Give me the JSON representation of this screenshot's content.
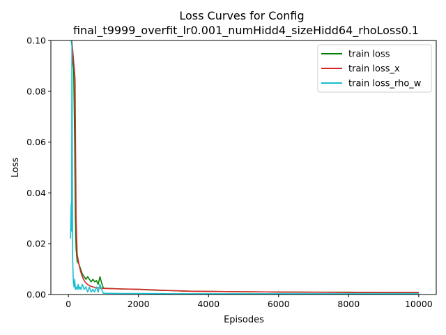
{
  "chart_data": {
    "type": "line",
    "title_line1": "Loss Curves for Config",
    "title_line2": "final_t9999_overfit_lr0.001_numHidd4_sizeHidd64_rhoLoss0.1",
    "xlabel": "Episodes",
    "ylabel": "Loss",
    "xlim": [
      -500,
      10500
    ],
    "ylim": [
      0.0,
      0.1
    ],
    "xticks": [
      0,
      2000,
      4000,
      6000,
      8000,
      10000
    ],
    "xtick_labels": [
      "0",
      "2000",
      "4000",
      "6000",
      "8000",
      "10000"
    ],
    "yticks": [
      0.0,
      0.02,
      0.04,
      0.06,
      0.08,
      0.1
    ],
    "ytick_labels": [
      "0.00",
      "0.02",
      "0.04",
      "0.06",
      "0.08",
      "0.10"
    ],
    "grid": false,
    "legend_position": "top-right",
    "series": [
      {
        "name": "train loss",
        "color": "#008000",
        "x": [
          80,
          100,
          120,
          150,
          180,
          200,
          220,
          250,
          300,
          350,
          400,
          450,
          500,
          550,
          600,
          650,
          700,
          750,
          800,
          850,
          900,
          950,
          1000,
          1500,
          2000,
          2500,
          3000,
          3500,
          4000,
          5000,
          6000,
          7000,
          8000,
          9000,
          10000
        ],
        "y": [
          0.1,
          0.098,
          0.092,
          0.089,
          0.06,
          0.03,
          0.018,
          0.013,
          0.012,
          0.01,
          0.008,
          0.007,
          0.006,
          0.007,
          0.006,
          0.005,
          0.006,
          0.005,
          0.0055,
          0.004,
          0.007,
          0.0045,
          0.0025,
          0.0022,
          0.002,
          0.0017,
          0.0015,
          0.0013,
          0.0012,
          0.0011,
          0.001,
          0.0009,
          0.0009,
          0.0008,
          0.0008
        ]
      },
      {
        "name": "train loss_x",
        "color": "#d62728",
        "x": [
          100,
          130,
          160,
          190,
          220,
          250,
          300,
          350,
          400,
          450,
          500,
          600,
          700,
          800,
          1000,
          1500,
          2000,
          2500,
          3000,
          3500,
          4000,
          5000,
          6000,
          7000,
          8000,
          9000,
          10000
        ],
        "y": [
          0.1,
          0.095,
          0.09,
          0.085,
          0.03,
          0.016,
          0.012,
          0.009,
          0.007,
          0.0055,
          0.0045,
          0.0035,
          0.003,
          0.0027,
          0.0024,
          0.0022,
          0.0021,
          0.0018,
          0.0015,
          0.0013,
          0.0012,
          0.0011,
          0.001,
          0.0009,
          0.0008,
          0.0008,
          0.0008
        ]
      },
      {
        "name": "train loss_rho_w",
        "color": "#17becf",
        "x": [
          60,
          80,
          90,
          100,
          110,
          120,
          140,
          160,
          180,
          200,
          220,
          250,
          280,
          300,
          330,
          360,
          400,
          450,
          500,
          550,
          600,
          650,
          700,
          750,
          800,
          850,
          900,
          950,
          980,
          1000,
          1500,
          2000,
          3000,
          4000,
          5000,
          6000,
          7000,
          8000,
          9000,
          10000
        ],
        "y": [
          0.022,
          0.036,
          0.025,
          0.1,
          0.06,
          0.015,
          0.005,
          0.003,
          0.006,
          0.002,
          0.003,
          0.002,
          0.004,
          0.002,
          0.003,
          0.002,
          0.004,
          0.002,
          0.003,
          0.001,
          0.003,
          0.001,
          0.002,
          0.001,
          0.003,
          0.001,
          0.004,
          0.002,
          0.001,
          0.0005,
          0.0004,
          0.0004,
          0.0003,
          0.0003,
          0.0003,
          0.0003,
          0.0003,
          0.0003,
          0.0003,
          0.0003
        ]
      }
    ]
  }
}
